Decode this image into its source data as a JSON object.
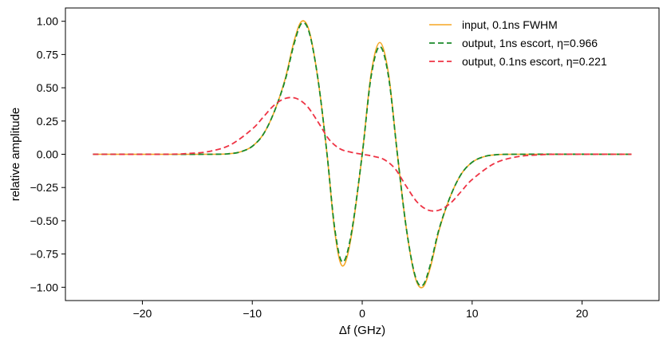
{
  "chart_data": {
    "type": "line",
    "title": "",
    "xlabel": "Δf (GHz)",
    "ylabel": "relative amplitude",
    "xlim": [
      -27,
      27
    ],
    "ylim": [
      -1.1,
      1.1
    ],
    "xticks": [
      -20,
      -10,
      0,
      10,
      20
    ],
    "xtick_labels": [
      "−20",
      "−10",
      "0",
      "10",
      "20"
    ],
    "yticks": [
      1.0,
      0.75,
      0.5,
      0.25,
      0.0,
      -0.25,
      -0.5,
      -0.75,
      -1.0
    ],
    "ytick_labels": [
      "1.00",
      "0.75",
      "0.50",
      "0.25",
      "0.00",
      "−0.25",
      "−0.50",
      "−0.75",
      "−1.00"
    ],
    "grid": false,
    "legend_position": "top-right",
    "series": [
      {
        "name": "input, 0.1ns FWHM",
        "color": "#f5a623",
        "style": "solid",
        "points": [
          [
            -24.5,
            0.0
          ],
          [
            -14,
            0.0
          ],
          [
            -12,
            0.005
          ],
          [
            -11,
            0.02
          ],
          [
            -10,
            0.06
          ],
          [
            -9,
            0.15
          ],
          [
            -8,
            0.32
          ],
          [
            -7,
            0.57
          ],
          [
            -6.2,
            0.85
          ],
          [
            -5.5,
            1.0
          ],
          [
            -4.8,
            0.92
          ],
          [
            -4,
            0.55
          ],
          [
            -3.2,
            0.0
          ],
          [
            -2.5,
            -0.58
          ],
          [
            -1.8,
            -0.84
          ],
          [
            -1.0,
            -0.62
          ],
          [
            0,
            0.0
          ],
          [
            0.8,
            0.6
          ],
          [
            1.6,
            0.84
          ],
          [
            2.4,
            0.6
          ],
          [
            3.2,
            0.0
          ],
          [
            4.0,
            -0.55
          ],
          [
            4.8,
            -0.92
          ],
          [
            5.5,
            -1.0
          ],
          [
            6.2,
            -0.85
          ],
          [
            7,
            -0.57
          ],
          [
            8,
            -0.32
          ],
          [
            9,
            -0.15
          ],
          [
            10,
            -0.06
          ],
          [
            11,
            -0.02
          ],
          [
            12,
            -0.005
          ],
          [
            14,
            0.0
          ],
          [
            24.5,
            0.0
          ]
        ]
      },
      {
        "name": "output, 1ns escort, η=0.966",
        "color": "#1a8a2a",
        "style": "dashed",
        "points": [
          [
            -24.5,
            0.0
          ],
          [
            -14,
            0.0
          ],
          [
            -12,
            0.005
          ],
          [
            -11,
            0.02
          ],
          [
            -10,
            0.06
          ],
          [
            -9,
            0.15
          ],
          [
            -8,
            0.32
          ],
          [
            -7,
            0.56
          ],
          [
            -6.2,
            0.83
          ],
          [
            -5.5,
            0.985
          ],
          [
            -4.8,
            0.91
          ],
          [
            -4,
            0.55
          ],
          [
            -3.2,
            0.0
          ],
          [
            -2.5,
            -0.56
          ],
          [
            -1.8,
            -0.81
          ],
          [
            -1.0,
            -0.6
          ],
          [
            0,
            0.0
          ],
          [
            0.8,
            0.58
          ],
          [
            1.6,
            0.81
          ],
          [
            2.4,
            0.58
          ],
          [
            3.2,
            0.0
          ],
          [
            4.0,
            -0.55
          ],
          [
            4.8,
            -0.91
          ],
          [
            5.5,
            -0.985
          ],
          [
            6.2,
            -0.83
          ],
          [
            7,
            -0.56
          ],
          [
            8,
            -0.32
          ],
          [
            9,
            -0.15
          ],
          [
            10,
            -0.06
          ],
          [
            11,
            -0.02
          ],
          [
            12,
            -0.005
          ],
          [
            14,
            0.0
          ],
          [
            24.5,
            0.0
          ]
        ]
      },
      {
        "name": "output, 0.1ns escort, η=0.221",
        "color": "#ee3344",
        "style": "dashed",
        "points": [
          [
            -24.5,
            0.0
          ],
          [
            -18,
            0.0
          ],
          [
            -16,
            0.005
          ],
          [
            -14,
            0.02
          ],
          [
            -12,
            0.07
          ],
          [
            -10,
            0.19
          ],
          [
            -9,
            0.28
          ],
          [
            -8,
            0.37
          ],
          [
            -7,
            0.42
          ],
          [
            -6,
            0.42
          ],
          [
            -5,
            0.36
          ],
          [
            -4,
            0.24
          ],
          [
            -3,
            0.11
          ],
          [
            -2,
            0.04
          ],
          [
            -1,
            0.015
          ],
          [
            0,
            0.0
          ],
          [
            1,
            -0.015
          ],
          [
            2,
            -0.04
          ],
          [
            3,
            -0.11
          ],
          [
            4,
            -0.24
          ],
          [
            5,
            -0.36
          ],
          [
            6,
            -0.42
          ],
          [
            7,
            -0.42
          ],
          [
            8,
            -0.37
          ],
          [
            9,
            -0.28
          ],
          [
            10,
            -0.19
          ],
          [
            12,
            -0.07
          ],
          [
            14,
            -0.02
          ],
          [
            16,
            -0.005
          ],
          [
            18,
            0.0
          ],
          [
            24.5,
            0.0
          ]
        ]
      }
    ]
  }
}
